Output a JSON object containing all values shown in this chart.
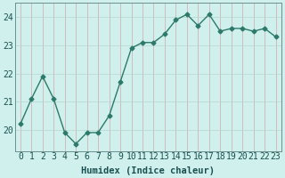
{
  "x": [
    0,
    1,
    2,
    3,
    4,
    5,
    6,
    7,
    8,
    9,
    10,
    11,
    12,
    13,
    14,
    15,
    16,
    17,
    18,
    19,
    20,
    21,
    22,
    23
  ],
  "y": [
    20.2,
    21.1,
    21.9,
    21.1,
    19.9,
    19.5,
    19.9,
    19.9,
    20.5,
    21.7,
    22.9,
    23.1,
    23.1,
    23.4,
    23.9,
    24.1,
    23.7,
    24.1,
    23.5,
    23.6,
    23.6,
    23.5,
    23.6,
    23.3
  ],
  "xlabel": "Humidex (Indice chaleur)",
  "xlim": [
    -0.5,
    23.5
  ],
  "ylim": [
    19.25,
    24.5
  ],
  "yticks": [
    20,
    21,
    22,
    23,
    24
  ],
  "xticks": [
    0,
    1,
    2,
    3,
    4,
    5,
    6,
    7,
    8,
    9,
    10,
    11,
    12,
    13,
    14,
    15,
    16,
    17,
    18,
    19,
    20,
    21,
    22,
    23
  ],
  "line_color": "#2d7a6a",
  "marker": "D",
  "marker_size": 2.5,
  "bg_color": "#cff0ec",
  "vgrid_color": "#d4a8a8",
  "hgrid_color": "#b8d4d0",
  "border_color": "#6b9090",
  "label_color": "#1a5050",
  "tick_label_color": "#1a5050",
  "xlabel_fontsize": 7.5,
  "tick_fontsize": 7.0,
  "linewidth": 1.0
}
